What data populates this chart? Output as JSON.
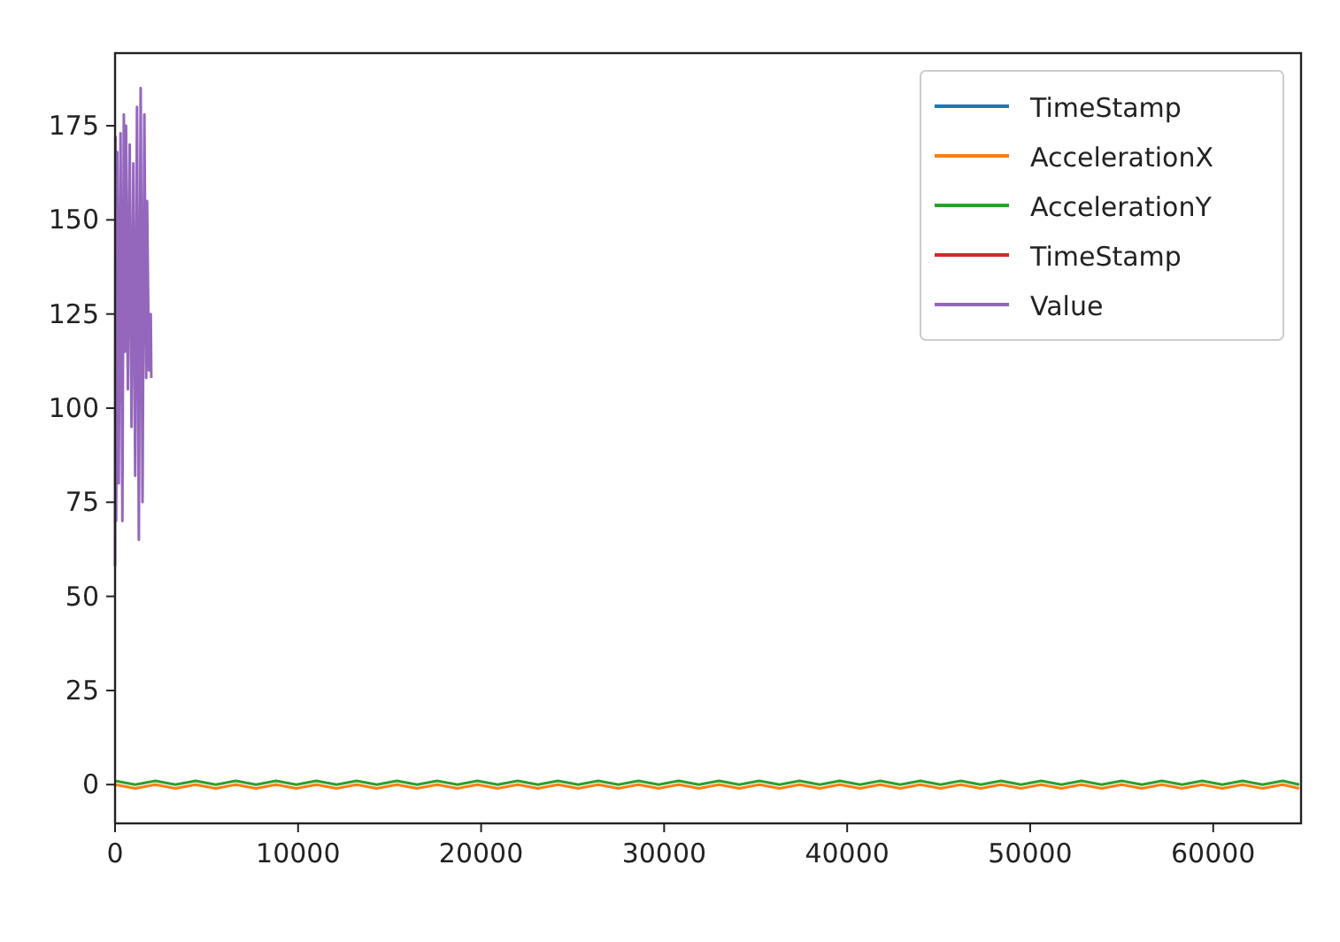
{
  "chart_data": {
    "type": "line",
    "legend": "top right",
    "grid": false,
    "line_style": "solid",
    "xlim": [
      0,
      64800
    ],
    "xticks": [
      0,
      10000,
      20000,
      30000,
      40000,
      50000,
      60000
    ],
    "ylim": [
      -10.3,
      194.3
    ],
    "yticks": [
      0,
      25,
      50,
      75,
      100,
      125,
      150,
      175
    ],
    "x": [
      0,
      1100,
      2200,
      3300,
      4400,
      5500,
      6600,
      7700,
      8800,
      9900,
      11000,
      12100,
      13200,
      14300,
      15400,
      16500,
      17600,
      18700,
      19800,
      20900,
      22000,
      23100,
      24200,
      25300,
      26400,
      27500,
      28600,
      29700,
      30800,
      31900,
      33000,
      34100,
      35200,
      36300,
      37400,
      38500,
      39600,
      40700,
      41800,
      42900,
      44000,
      45100,
      46200,
      47300,
      48400,
      49500,
      50600,
      51700,
      52800,
      53900,
      55000,
      56100,
      57200,
      58300,
      59400,
      60500,
      61600,
      62700,
      63800,
      64700
    ],
    "series": [
      {
        "name": "TimeStamp",
        "color": "#1f77b4",
        "values": [
          null,
          null,
          null,
          null,
          null,
          null,
          null,
          null,
          null,
          null,
          null,
          null,
          null,
          null,
          null,
          null,
          null,
          null,
          null,
          null,
          null,
          null,
          null,
          null,
          null,
          null,
          null,
          null,
          null,
          null,
          null,
          null,
          null,
          null,
          null,
          null,
          null,
          null,
          null,
          null,
          null,
          null,
          null,
          null,
          null,
          null,
          null,
          null,
          null,
          null,
          null,
          null,
          null,
          null,
          null,
          null,
          null,
          null,
          null,
          null
        ]
      },
      {
        "name": "AccelerationX",
        "color": "#ff7f0e",
        "values": [
          0,
          -1,
          0,
          -1,
          0,
          -1,
          0,
          -1,
          0,
          -1,
          0,
          -1,
          0,
          -1,
          0,
          -1,
          0,
          -1,
          0,
          -1,
          0,
          -1,
          0,
          -1,
          0,
          -1,
          0,
          -1,
          0,
          -1,
          0,
          -1,
          0,
          -1,
          0,
          -1,
          0,
          -1,
          0,
          -1,
          0,
          -1,
          0,
          -1,
          0,
          -1,
          0,
          -1,
          0,
          -1,
          0,
          -1,
          0,
          -1,
          0,
          -1,
          0,
          -1,
          0,
          -1
        ]
      },
      {
        "name": "AccelerationY",
        "color": "#2ca02c",
        "values": [
          1,
          0,
          1,
          0,
          1,
          0,
          1,
          0,
          1,
          0,
          1,
          0,
          1,
          0,
          1,
          0,
          1,
          0,
          1,
          0,
          1,
          0,
          1,
          0,
          1,
          0,
          1,
          0,
          1,
          0,
          1,
          0,
          1,
          0,
          1,
          0,
          1,
          0,
          1,
          0,
          1,
          0,
          1,
          0,
          1,
          0,
          1,
          0,
          1,
          0,
          1,
          0,
          1,
          0,
          1,
          0,
          1,
          0,
          1,
          0
        ]
      },
      {
        "name": "TimeStamp",
        "color": "#d62728",
        "values": [
          null,
          null,
          null,
          null,
          null,
          null,
          null,
          null,
          null,
          null,
          null,
          null,
          null,
          null,
          null,
          null,
          null,
          null,
          null,
          null,
          null,
          null,
          null,
          null,
          null,
          null,
          null,
          null,
          null,
          null,
          null,
          null,
          null,
          null,
          null,
          null,
          null,
          null,
          null,
          null,
          null,
          null,
          null,
          null,
          null,
          null,
          null,
          null,
          null,
          null,
          null,
          null,
          null,
          null,
          null,
          null,
          null,
          null,
          null,
          null
        ]
      },
      {
        "name": "Value",
        "color": "#9467bd",
        "x": [
          0,
          30,
          60,
          120,
          200,
          300,
          400,
          480,
          550,
          600,
          700,
          800,
          900,
          1000,
          1100,
          1200,
          1300,
          1400,
          1500,
          1600,
          1700,
          1750,
          1850,
          1950,
          1980
        ],
        "values": [
          58,
          172,
          70,
          168,
          80,
          173,
          70,
          178,
          115,
          175,
          105,
          170,
          95,
          165,
          82,
          180,
          65,
          185,
          75,
          178,
          108,
          155,
          110,
          125,
          108
        ]
      }
    ]
  }
}
